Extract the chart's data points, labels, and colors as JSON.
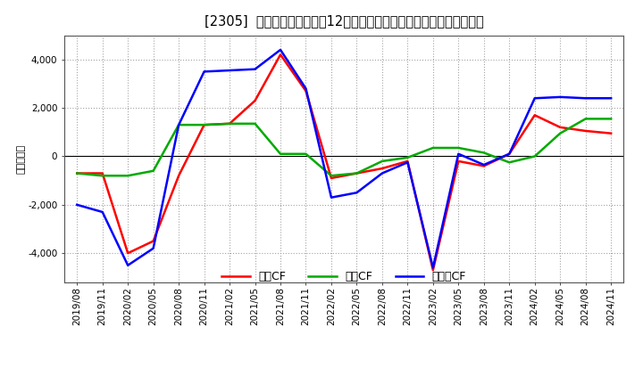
{
  "title": "[2305]  キャッシュフローの12か月移動合計の対前年同期増減額の推移",
  "ylabel": "（百万円）",
  "background_color": "#ffffff",
  "plot_bg_color": "#ffffff",
  "grid_color": "#999999",
  "xlabels": [
    "2019/08",
    "2019/11",
    "2020/02",
    "2020/05",
    "2020/08",
    "2020/11",
    "2021/02",
    "2021/05",
    "2021/08",
    "2021/11",
    "2022/02",
    "2022/05",
    "2022/08",
    "2022/11",
    "2023/02",
    "2023/05",
    "2023/08",
    "2023/11",
    "2024/02",
    "2024/05",
    "2024/08",
    "2024/11"
  ],
  "operating_cf": [
    -700,
    -700,
    -4000,
    -3500,
    -800,
    1300,
    1350,
    2300,
    4200,
    2700,
    -900,
    -700,
    -500,
    -200,
    -4700,
    -200,
    -400,
    100,
    1700,
    1200,
    1050,
    950
  ],
  "investing_cf": [
    -700,
    -800,
    -800,
    -600,
    1300,
    1300,
    1350,
    1350,
    100,
    100,
    -800,
    -700,
    -200,
    -50,
    350,
    350,
    150,
    -250,
    0,
    950,
    1550,
    1550
  ],
  "free_cf": [
    -2000,
    -2300,
    -4500,
    -3800,
    1300,
    3500,
    3550,
    3600,
    4400,
    2800,
    -1700,
    -1500,
    -700,
    -250,
    -4600,
    100,
    -350,
    100,
    2400,
    2450,
    2400,
    2400
  ],
  "ylim": [
    -5200,
    5000
  ],
  "yticks": [
    -4000,
    -2000,
    0,
    2000,
    4000
  ],
  "legend_labels": [
    "営業CF",
    "投資CF",
    "フリーCF"
  ],
  "line_colors": [
    "#ff0000",
    "#00aa00",
    "#0000ff"
  ],
  "line_width": 1.8
}
